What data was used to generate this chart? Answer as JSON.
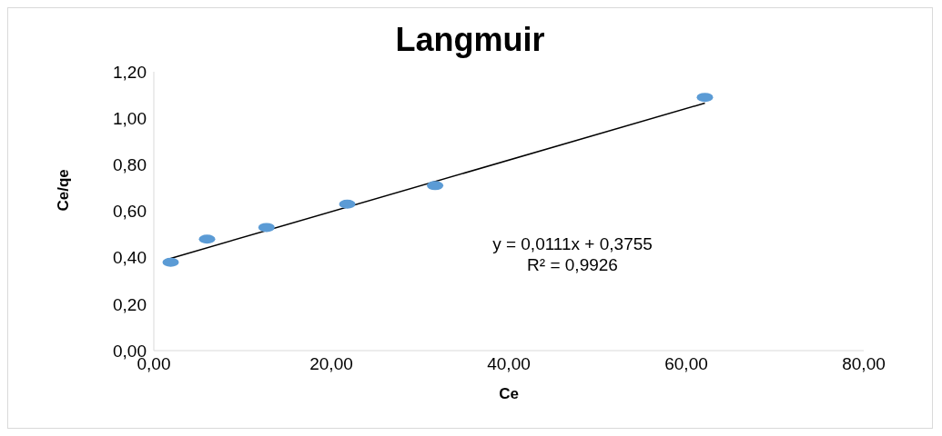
{
  "chart_data": {
    "type": "scatter",
    "title": "Langmuir",
    "xlabel": "Ce",
    "ylabel": "Ce/qe",
    "x": [
      1.9,
      6.0,
      12.7,
      21.8,
      31.7,
      62.1
    ],
    "series": [
      {
        "type": "scatter",
        "color": "#5b9bd5",
        "marker": "circle",
        "values": [
          0.38,
          0.48,
          0.53,
          0.63,
          0.71,
          1.09
        ]
      },
      {
        "type": "line",
        "color": "#000000",
        "marker": "none",
        "line_style": "solid",
        "x": [
          1.9,
          62.1
        ],
        "values": [
          0.397,
          1.065
        ]
      }
    ],
    "xlim": [
      0,
      80
    ],
    "ylim": [
      0,
      1.2
    ],
    "xticks": [
      {
        "value": 0,
        "label": "0,00"
      },
      {
        "value": 20,
        "label": "20,00"
      },
      {
        "value": 40,
        "label": "40,00"
      },
      {
        "value": 60,
        "label": "60,00"
      },
      {
        "value": 80,
        "label": "80,00"
      }
    ],
    "yticks": [
      {
        "value": 0,
        "label": "0,00"
      },
      {
        "value": 0.2,
        "label": "0,20"
      },
      {
        "value": 0.4,
        "label": "0,40"
      },
      {
        "value": 0.6,
        "label": "0,60"
      },
      {
        "value": 0.8,
        "label": "0,80"
      },
      {
        "value": 1.0,
        "label": "1,00"
      },
      {
        "value": 1.2,
        "label": "1,20"
      }
    ],
    "grid": false,
    "legend": false,
    "annotations": [
      "y = 0,0111x + 0,3755",
      "R² = 0,9926"
    ]
  }
}
